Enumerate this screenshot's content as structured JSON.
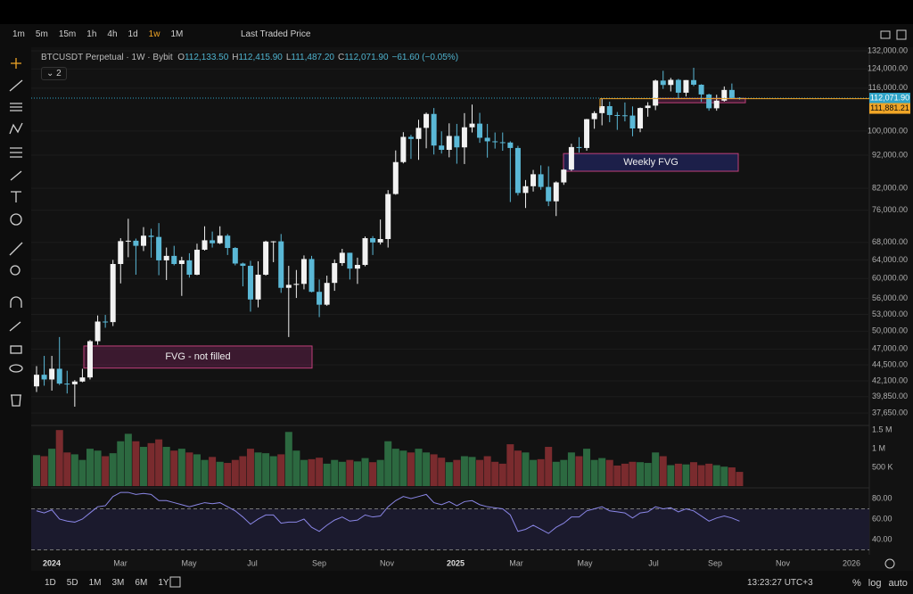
{
  "ui": {
    "timeframes": [
      "1m",
      "5m",
      "15m",
      "1h",
      "4h",
      "1d",
      "1w",
      "1M"
    ],
    "price_source": "Last Traded Price",
    "indicator_count": "2",
    "ranges": [
      "1D",
      "5D",
      "1M",
      "3M",
      "6M",
      "1Y"
    ],
    "clock": "13:23:27 UTC+3",
    "scale_buttons": [
      "%",
      "log",
      "auto"
    ]
  },
  "chart_data": {
    "type": "candlestick",
    "header": {
      "symbol": "BTCUSDT Perpetual · 1W · Bybit",
      "open_label": "O",
      "open": "112,133.50",
      "high_label": "H",
      "high": "112,415.90",
      "low_label": "L",
      "low": "111,487.20",
      "close_label": "C",
      "close": "112,071.90",
      "change": "−61.60 (−0.05%)"
    },
    "x_labels": [
      "2024",
      "Mar",
      "May",
      "Jul",
      "Sep",
      "Nov",
      "2025",
      "Mar",
      "May",
      "Jul",
      "Sep",
      "Nov",
      "2026"
    ],
    "ohlc": [
      [
        41300,
        44300,
        40500,
        43000
      ],
      [
        43000,
        45900,
        41400,
        42300
      ],
      [
        42300,
        45900,
        40700,
        43900
      ],
      [
        43900,
        49000,
        41500,
        41700
      ],
      [
        41700,
        43600,
        40300,
        41600
      ],
      [
        41600,
        42200,
        38500,
        42000
      ],
      [
        42000,
        43900,
        41900,
        42600
      ],
      [
        42600,
        48500,
        42300,
        48300
      ],
      [
        48300,
        52800,
        47700,
        51700
      ],
      [
        51700,
        52900,
        50600,
        51600
      ],
      [
        51600,
        64000,
        50900,
        63100
      ],
      [
        63100,
        69000,
        59000,
        68300
      ],
      [
        68300,
        73800,
        64600,
        68400
      ],
      [
        68400,
        68900,
        60800,
        67200
      ],
      [
        67200,
        71700,
        66000,
        69600
      ],
      [
        69600,
        71300,
        64500,
        69300
      ],
      [
        69300,
        72700,
        60700,
        63900
      ],
      [
        63900,
        66800,
        59700,
        64900
      ],
      [
        64900,
        67200,
        62800,
        63100
      ],
      [
        63100,
        64700,
        56500,
        63900
      ],
      [
        63900,
        65500,
        60200,
        60800
      ],
      [
        60800,
        67700,
        60700,
        66300
      ],
      [
        66300,
        71900,
        66100,
        68500
      ],
      [
        68500,
        70600,
        66800,
        67800
      ],
      [
        67800,
        71900,
        67600,
        69600
      ],
      [
        69600,
        70000,
        65100,
        66700
      ],
      [
        66700,
        66900,
        62800,
        63200
      ],
      [
        63200,
        63400,
        58400,
        62700
      ],
      [
        62700,
        63800,
        53500,
        55800
      ],
      [
        55800,
        63700,
        54300,
        60800
      ],
      [
        60800,
        68400,
        60600,
        68200
      ],
      [
        68200,
        68300,
        63500,
        68250
      ],
      [
        68250,
        70000,
        57100,
        58100
      ],
      [
        58100,
        62700,
        49000,
        58700
      ],
      [
        58700,
        61800,
        56100,
        58900
      ],
      [
        58900,
        65000,
        57800,
        64200
      ],
      [
        64200,
        64900,
        57200,
        57300
      ],
      [
        57300,
        59800,
        52500,
        54800
      ],
      [
        54800,
        60600,
        54600,
        59100
      ],
      [
        59100,
        64100,
        57500,
        63300
      ],
      [
        63300,
        66500,
        62700,
        65600
      ],
      [
        65600,
        65600,
        59800,
        62100
      ],
      [
        62100,
        64500,
        58900,
        62900
      ],
      [
        62900,
        69400,
        62600,
        69000
      ],
      [
        69000,
        69500,
        65100,
        68000
      ],
      [
        68000,
        73600,
        67500,
        68800
      ],
      [
        68800,
        81500,
        66800,
        80400
      ],
      [
        80400,
        93500,
        80200,
        89800
      ],
      [
        89800,
        99600,
        89400,
        98000
      ],
      [
        98000,
        98700,
        90800,
        97300
      ],
      [
        97300,
        104000,
        90500,
        101100
      ],
      [
        101100,
        106600,
        94200,
        106100
      ],
      [
        106100,
        108300,
        92200,
        95100
      ],
      [
        95100,
        99900,
        92500,
        93700
      ],
      [
        93700,
        102700,
        91300,
        98300
      ],
      [
        98300,
        102500,
        89300,
        94500
      ],
      [
        94500,
        106400,
        89200,
        101300
      ],
      [
        101300,
        109600,
        99500,
        102600
      ],
      [
        102600,
        106500,
        96000,
        97700
      ],
      [
        97700,
        102500,
        91200,
        96500
      ],
      [
        96500,
        99500,
        94100,
        96200
      ],
      [
        96200,
        99500,
        93400,
        96100
      ],
      [
        96100,
        96500,
        78200,
        94300
      ],
      [
        94300,
        95000,
        80000,
        80700
      ],
      [
        80700,
        84400,
        76600,
        82600
      ],
      [
        82600,
        87400,
        81100,
        86100
      ],
      [
        86100,
        88800,
        81600,
        82400
      ],
      [
        82400,
        88500,
        77100,
        78400
      ],
      [
        78400,
        84000,
        74500,
        83700
      ],
      [
        83700,
        87700,
        83000,
        87500
      ],
      [
        87500,
        95700,
        87100,
        94600
      ],
      [
        94600,
        97900,
        92800,
        94300
      ],
      [
        94300,
        104300,
        93400,
        104200
      ],
      [
        104200,
        107100,
        100800,
        106400
      ],
      [
        106400,
        111900,
        102000,
        109000
      ],
      [
        109000,
        110700,
        103100,
        105700
      ],
      [
        105700,
        106800,
        100400,
        105600
      ],
      [
        105600,
        110400,
        103400,
        105500
      ],
      [
        105500,
        108900,
        98200,
        100900
      ],
      [
        100900,
        108500,
        99600,
        108300
      ],
      [
        108300,
        110500,
        105100,
        109200
      ],
      [
        109200,
        119500,
        107500,
        119100
      ],
      [
        119100,
        123200,
        115700,
        117300
      ],
      [
        117300,
        120200,
        114700,
        119400
      ],
      [
        119400,
        119800,
        112000,
        114200
      ],
      [
        114200,
        119300,
        112700,
        119300
      ],
      [
        119300,
        124500,
        116800,
        117400
      ],
      [
        117400,
        117600,
        110600,
        113500
      ],
      [
        113500,
        113800,
        107300,
        108200
      ],
      [
        108200,
        113400,
        107300,
        111100
      ],
      [
        111100,
        116700,
        110700,
        115300
      ],
      [
        115300,
        117900,
        111900,
        112133.5
      ],
      [
        112133.5,
        112415.9,
        111487.2,
        112071.9
      ]
    ],
    "up_color": "#f2f2f2",
    "down_color": "#5ab8d6",
    "log_scale": true,
    "grid": true,
    "ylim": [
      36300,
      134900
    ],
    "yticks": [
      {
        "value": 132000,
        "label": "132,000.00"
      },
      {
        "value": 124000,
        "label": "124,000.00"
      },
      {
        "value": 116000,
        "label": "116,000.00"
      },
      {
        "value": 100000,
        "label": "100,000.00"
      },
      {
        "value": 92000,
        "label": "92,000.00"
      },
      {
        "value": 82000,
        "label": "82,000.00"
      },
      {
        "value": 76000,
        "label": "76,000.00"
      },
      {
        "value": 68000,
        "label": "68,000.00"
      },
      {
        "value": 64000,
        "label": "64,000.00"
      },
      {
        "value": 60000,
        "label": "60,000.00"
      },
      {
        "value": 56000,
        "label": "56,000.00"
      },
      {
        "value": 53000,
        "label": "53,000.00"
      },
      {
        "value": 50000,
        "label": "50,000.00"
      },
      {
        "value": 47000,
        "label": "47,000.00"
      },
      {
        "value": 44500,
        "label": "44,500.00"
      },
      {
        "value": 42100,
        "label": "42,100.00"
      },
      {
        "value": 39850,
        "label": "39,850.00"
      },
      {
        "value": 37650,
        "label": "37,650.00"
      }
    ],
    "last_price": {
      "value": 112071.9,
      "label": "112,071.90",
      "color": "#2fa4c8"
    },
    "level": {
      "value": 111881.21,
      "label": "111,881.21",
      "color": "#f0a526"
    },
    "zones": [
      {
        "label": "FVG - not filled",
        "top": 47500,
        "bottom": 44000,
        "fill": "rgba(110,35,85,0.45)"
      },
      {
        "label": "Weekly FVG",
        "top": 92500,
        "bottom": 87000,
        "fill": "rgba(35,40,110,0.6)"
      },
      {
        "top": 112000,
        "bottom": 110300,
        "fill": "rgba(110,35,85,0.45)"
      }
    ],
    "volume": {
      "values": [
        830000,
        800000,
        1000000,
        1500000,
        900000,
        850000,
        700000,
        1000000,
        950000,
        800000,
        880000,
        1200000,
        1400000,
        1200000,
        1050000,
        1150000,
        1250000,
        1050000,
        950000,
        1000000,
        900000,
        850000,
        700000,
        780000,
        650000,
        620000,
        700000,
        800000,
        1000000,
        900000,
        880000,
        800000,
        850000,
        1450000,
        950000,
        700000,
        720000,
        760000,
        600000,
        700000,
        650000,
        700000,
        660000,
        750000,
        640000,
        700000,
        1200000,
        1000000,
        950000,
        900000,
        1000000,
        900000,
        850000,
        760000,
        640000,
        700000,
        800000,
        780000,
        700000,
        800000,
        650000,
        600000,
        1120000,
        950000,
        900000,
        700000,
        720000,
        1050000,
        650000,
        700000,
        900000,
        800000,
        1000000,
        700000,
        750000,
        700000,
        550000,
        600000,
        650000,
        640000,
        620000,
        900000,
        800000,
        560000,
        600000,
        580000,
        640000,
        560000,
        600000,
        560000,
        520000,
        500000,
        380000
      ],
      "ylim": [
        0,
        1600000
      ],
      "yticks": [
        {
          "value": 500000,
          "label": "500 K"
        },
        {
          "value": 1000000,
          "label": "1 M"
        },
        {
          "value": 1500000,
          "label": "1.5 M"
        }
      ],
      "up_color": "#2c6940",
      "down_color": "#7a2b2e"
    },
    "rsi": {
      "values": [
        68,
        66,
        69,
        60,
        58,
        57,
        60,
        66,
        72,
        73,
        82,
        86,
        86,
        84,
        85,
        84,
        78,
        78,
        76,
        74,
        72,
        74,
        76,
        75,
        76,
        72,
        68,
        62,
        55,
        60,
        64,
        64,
        56,
        57,
        57,
        60,
        52,
        48,
        54,
        59,
        62,
        58,
        59,
        64,
        62,
        63,
        72,
        78,
        82,
        80,
        82,
        84,
        76,
        74,
        77,
        73,
        77,
        78,
        74,
        72,
        71,
        70,
        64,
        48,
        50,
        54,
        50,
        46,
        52,
        56,
        62,
        62,
        68,
        70,
        72,
        68,
        67,
        66,
        61,
        66,
        67,
        72,
        70,
        71,
        67,
        70,
        68,
        63,
        58,
        61,
        63,
        61,
        58
      ],
      "ylim": [
        22.6,
        87.8
      ],
      "yticks": [
        {
          "value": 40,
          "label": "40.00"
        },
        {
          "value": 60,
          "label": "60.00"
        },
        {
          "value": 80,
          "label": "80.00"
        }
      ],
      "bands": [
        70,
        30
      ],
      "color": "#8a86e6"
    }
  }
}
